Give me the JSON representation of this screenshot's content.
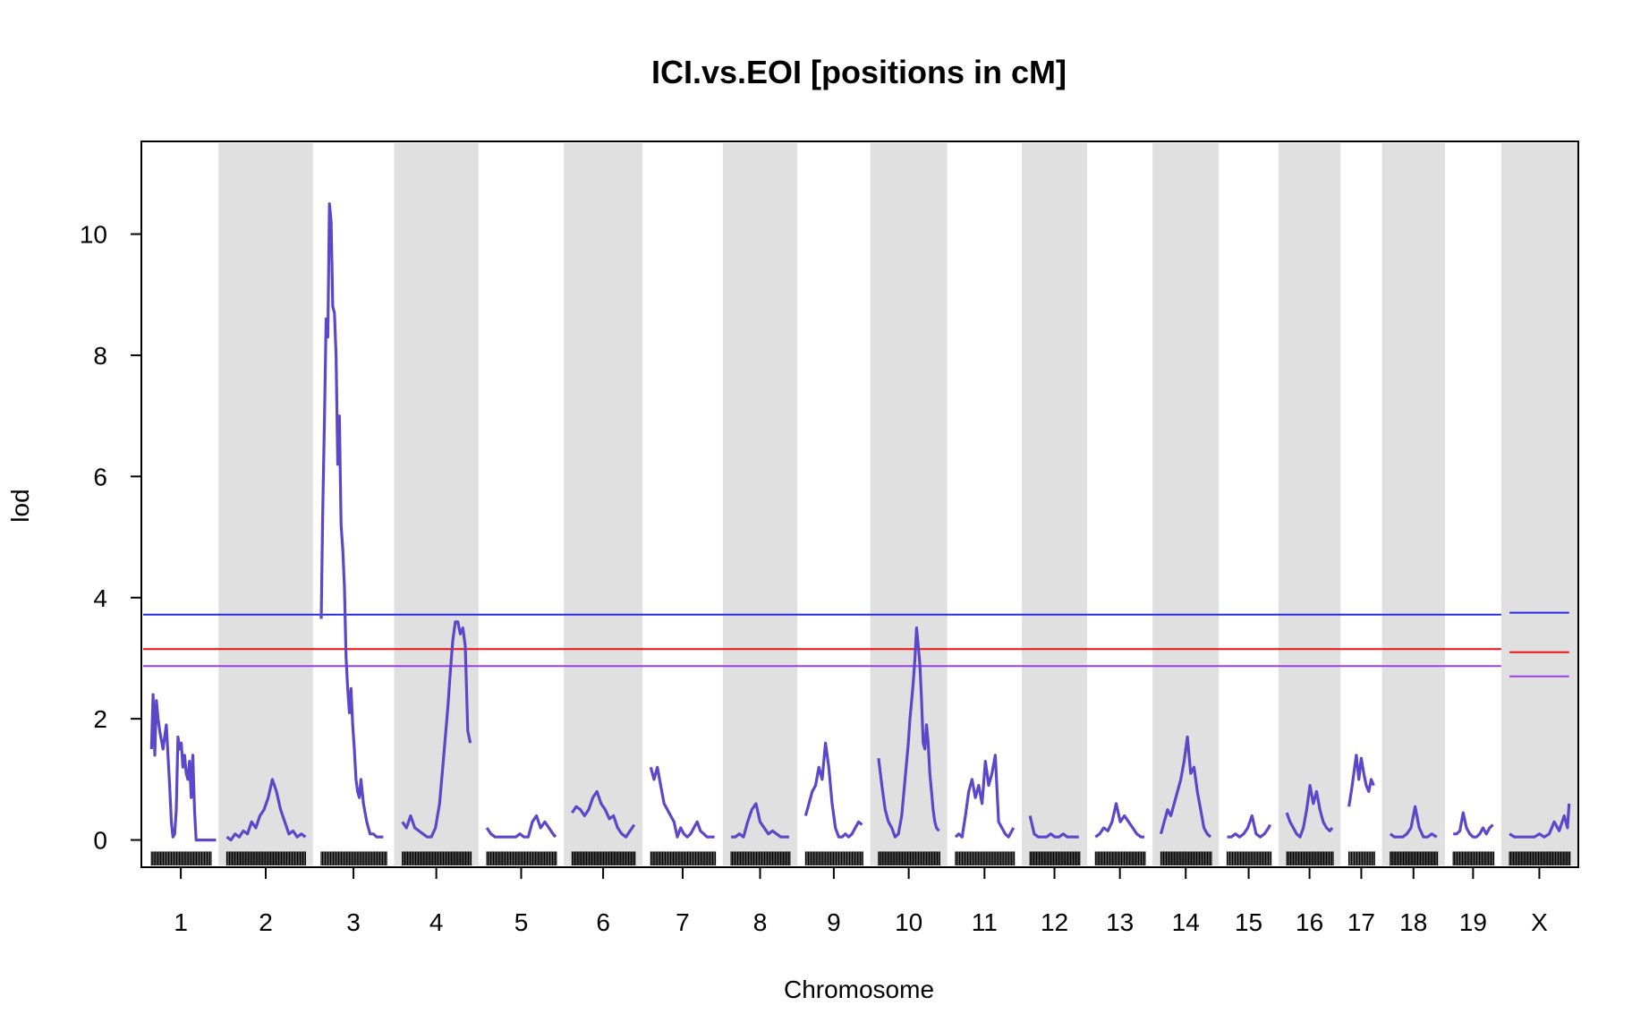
{
  "chart_data": {
    "type": "line",
    "title": "ICI.vs.EOI [positions in cM]",
    "xlabel": "Chromosome",
    "ylabel": "lod",
    "ylim": [
      -0.42,
      11.5
    ],
    "yticks": [
      0,
      2,
      4,
      6,
      8,
      10
    ],
    "grid": false,
    "legend": "none",
    "colors": {
      "series": "#5b47c9",
      "band": "#e0e0e0",
      "threshold_blue": "#2a2ae6",
      "threshold_red": "#ee1111",
      "threshold_purple": "#9a3ee6",
      "markers": "#000000"
    },
    "chromosomes": [
      {
        "label": "1",
        "shaded": false,
        "start": 0,
        "end": 91
      },
      {
        "label": "2",
        "shaded": true,
        "start": 91,
        "end": 205
      },
      {
        "label": "3",
        "shaded": false,
        "start": 205,
        "end": 303
      },
      {
        "label": "4",
        "shaded": true,
        "start": 303,
        "end": 405
      },
      {
        "label": "5",
        "shaded": false,
        "start": 405,
        "end": 508
      },
      {
        "label": "6",
        "shaded": true,
        "start": 508,
        "end": 603
      },
      {
        "label": "7",
        "shaded": false,
        "start": 603,
        "end": 700
      },
      {
        "label": "8",
        "shaded": true,
        "start": 700,
        "end": 790
      },
      {
        "label": "9",
        "shaded": false,
        "start": 790,
        "end": 878
      },
      {
        "label": "10",
        "shaded": true,
        "start": 878,
        "end": 971
      },
      {
        "label": "11",
        "shaded": false,
        "start": 971,
        "end": 1061
      },
      {
        "label": "12",
        "shaded": true,
        "start": 1061,
        "end": 1140
      },
      {
        "label": "13",
        "shaded": false,
        "start": 1140,
        "end": 1219
      },
      {
        "label": "14",
        "shaded": true,
        "start": 1219,
        "end": 1299
      },
      {
        "label": "15",
        "shaded": false,
        "start": 1299,
        "end": 1371
      },
      {
        "label": "16",
        "shaded": true,
        "start": 1371,
        "end": 1446
      },
      {
        "label": "17",
        "shaded": false,
        "start": 1446,
        "end": 1496
      },
      {
        "label": "18",
        "shaded": true,
        "start": 1496,
        "end": 1572
      },
      {
        "label": "19",
        "shaded": false,
        "start": 1572,
        "end": 1640
      },
      {
        "label": "X",
        "shaded": true,
        "start": 1640,
        "end": 1732
      }
    ],
    "thresholds": [
      {
        "color": "#2a2ae6",
        "autosome": 3.72,
        "x": 3.75
      },
      {
        "color": "#ee1111",
        "autosome": 3.15,
        "x": 3.1
      },
      {
        "color": "#9a3ee6",
        "autosome": 2.87,
        "x": 2.7
      }
    ],
    "series": [
      {
        "chr": "1",
        "x": [
          10,
          12,
          14,
          16,
          18,
          20,
          24,
          28,
          32,
          34,
          36,
          38,
          40,
          42,
          44,
          46,
          48,
          50,
          52,
          54,
          56,
          58,
          60,
          62,
          64,
          66,
          68,
          70,
          72,
          74,
          76,
          78,
          80,
          82,
          84,
          86,
          88
        ],
        "y": [
          1.5,
          2.4,
          1.4,
          2.3,
          2.0,
          1.8,
          1.5,
          1.9,
          0.9,
          0.3,
          0.05,
          0.1,
          0.5,
          1.7,
          1.5,
          1.6,
          1.2,
          1.4,
          1.1,
          1.0,
          1.3,
          0.7,
          1.4,
          0.5,
          0,
          0,
          0,
          0,
          0,
          0,
          0,
          0,
          0,
          0,
          0,
          0,
          0
        ]
      },
      {
        "chr": "2",
        "x": [
          101,
          106,
          111,
          116,
          121,
          126,
          131,
          136,
          141,
          146,
          151,
          156,
          161,
          166,
          171,
          176,
          181,
          186,
          191,
          196
        ],
        "y": [
          0.05,
          0.0,
          0.1,
          0.05,
          0.15,
          0.1,
          0.3,
          0.2,
          0.4,
          0.5,
          0.7,
          1.0,
          0.8,
          0.5,
          0.3,
          0.1,
          0.15,
          0.05,
          0.1,
          0.05
        ]
      },
      {
        "chr": "3",
        "x": [
          215,
          217,
          219,
          221,
          223,
          225,
          227,
          229,
          231,
          233,
          235,
          237,
          239,
          241,
          243,
          245,
          247,
          249,
          251,
          253,
          255,
          257,
          259,
          261,
          263,
          266,
          270,
          274,
          278,
          282,
          286,
          290
        ],
        "y": [
          3.65,
          5.5,
          7.0,
          8.6,
          8.3,
          10.5,
          10.2,
          8.8,
          8.7,
          8.0,
          6.2,
          7.0,
          5.2,
          4.8,
          4.2,
          3.0,
          2.5,
          2.1,
          2.5,
          1.9,
          1.5,
          1.0,
          0.8,
          0.7,
          1.0,
          0.6,
          0.3,
          0.1,
          0.1,
          0.05,
          0.05,
          0.05
        ]
      },
      {
        "chr": "4",
        "x": [
          313,
          318,
          323,
          328,
          333,
          338,
          343,
          348,
          353,
          358,
          363,
          368,
          371,
          374,
          377,
          380,
          383,
          386,
          389,
          392,
          395
        ],
        "y": [
          0.3,
          0.2,
          0.4,
          0.2,
          0.15,
          0.1,
          0.05,
          0.05,
          0.2,
          0.6,
          1.4,
          2.2,
          2.8,
          3.3,
          3.6,
          3.6,
          3.4,
          3.5,
          3.2,
          1.8,
          1.6
        ]
      },
      {
        "chr": "5",
        "x": [
          415,
          420,
          425,
          430,
          435,
          440,
          445,
          450,
          455,
          460,
          465,
          470,
          475,
          480,
          485,
          490,
          495,
          498
        ],
        "y": [
          0.2,
          0.1,
          0.05,
          0.05,
          0.05,
          0.05,
          0.05,
          0.05,
          0.1,
          0.05,
          0.05,
          0.3,
          0.4,
          0.2,
          0.3,
          0.2,
          0.1,
          0.05
        ]
      },
      {
        "chr": "6",
        "x": [
          518,
          523,
          528,
          533,
          538,
          543,
          548,
          553,
          558,
          563,
          568,
          573,
          578,
          583,
          588,
          593
        ],
        "y": [
          0.45,
          0.55,
          0.5,
          0.4,
          0.5,
          0.7,
          0.8,
          0.6,
          0.5,
          0.35,
          0.4,
          0.2,
          0.1,
          0.05,
          0.15,
          0.25
        ]
      },
      {
        "chr": "7",
        "x": [
          613,
          617,
          621,
          625,
          629,
          633,
          637,
          641,
          645,
          649,
          653,
          657,
          661,
          665,
          669,
          673,
          677,
          681,
          685,
          690
        ],
        "y": [
          1.2,
          1.0,
          1.2,
          0.9,
          0.6,
          0.5,
          0.4,
          0.3,
          0.05,
          0.2,
          0.1,
          0.05,
          0.1,
          0.2,
          0.3,
          0.15,
          0.1,
          0.05,
          0.05,
          0.05
        ]
      },
      {
        "chr": "8",
        "x": [
          710,
          715,
          720,
          725,
          730,
          735,
          740,
          745,
          750,
          755,
          760,
          765,
          770,
          775,
          780
        ],
        "y": [
          0.05,
          0.05,
          0.1,
          0.05,
          0.3,
          0.5,
          0.6,
          0.3,
          0.2,
          0.1,
          0.15,
          0.1,
          0.05,
          0.05,
          0.05
        ]
      },
      {
        "chr": "9",
        "x": [
          800,
          804,
          808,
          812,
          816,
          820,
          824,
          828,
          832,
          836,
          840,
          844,
          848,
          852,
          856,
          860,
          864,
          868
        ],
        "y": [
          0.4,
          0.6,
          0.8,
          0.9,
          1.2,
          1.0,
          1.6,
          1.2,
          0.6,
          0.2,
          0.05,
          0.05,
          0.1,
          0.05,
          0.1,
          0.2,
          0.3,
          0.25
        ]
      },
      {
        "chr": "10",
        "x": [
          888,
          892,
          896,
          900,
          904,
          908,
          912,
          916,
          920,
          924,
          926,
          928,
          930,
          932,
          934,
          936,
          938,
          940,
          942,
          944,
          946,
          948,
          950,
          952,
          954,
          956,
          958,
          961
        ],
        "y": [
          1.35,
          0.9,
          0.5,
          0.3,
          0.2,
          0.05,
          0.1,
          0.4,
          1.0,
          1.6,
          2.0,
          2.3,
          2.6,
          3.0,
          3.5,
          3.2,
          2.9,
          2.3,
          1.6,
          1.5,
          1.9,
          1.6,
          1.1,
          0.8,
          0.5,
          0.3,
          0.2,
          0.15
        ]
      },
      {
        "chr": "11",
        "x": [
          981,
          985,
          989,
          993,
          997,
          1001,
          1005,
          1009,
          1013,
          1017,
          1021,
          1025,
          1029,
          1033,
          1037,
          1041,
          1045,
          1051
        ],
        "y": [
          0.05,
          0.1,
          0.05,
          0.4,
          0.8,
          1.0,
          0.7,
          0.9,
          0.6,
          1.3,
          0.9,
          1.1,
          1.4,
          0.3,
          0.2,
          0.1,
          0.05,
          0.2
        ]
      },
      {
        "chr": "12",
        "x": [
          1071,
          1076,
          1081,
          1086,
          1091,
          1096,
          1101,
          1106,
          1111,
          1116,
          1121,
          1126,
          1130
        ],
        "y": [
          0.4,
          0.1,
          0.05,
          0.05,
          0.05,
          0.1,
          0.05,
          0.05,
          0.1,
          0.05,
          0.05,
          0.05,
          0.05
        ]
      },
      {
        "chr": "13",
        "x": [
          1150,
          1155,
          1160,
          1165,
          1170,
          1175,
          1180,
          1185,
          1190,
          1195,
          1200,
          1205,
          1209
        ],
        "y": [
          0.05,
          0.1,
          0.2,
          0.15,
          0.3,
          0.6,
          0.3,
          0.4,
          0.3,
          0.2,
          0.1,
          0.05,
          0.05
        ]
      },
      {
        "chr": "14",
        "x": [
          1229,
          1233,
          1237,
          1241,
          1245,
          1249,
          1253,
          1257,
          1261,
          1265,
          1269,
          1273,
          1277,
          1281,
          1285,
          1289
        ],
        "y": [
          0.1,
          0.3,
          0.5,
          0.4,
          0.6,
          0.8,
          1.0,
          1.3,
          1.7,
          1.1,
          1.2,
          0.8,
          0.5,
          0.2,
          0.1,
          0.05
        ]
      },
      {
        "chr": "15",
        "x": [
          1309,
          1314,
          1319,
          1324,
          1329,
          1334,
          1339,
          1344,
          1349,
          1354,
          1359,
          1361
        ],
        "y": [
          0.05,
          0.05,
          0.1,
          0.05,
          0.1,
          0.2,
          0.4,
          0.1,
          0.05,
          0.1,
          0.2,
          0.25
        ]
      },
      {
        "chr": "16",
        "x": [
          1381,
          1385,
          1389,
          1393,
          1397,
          1401,
          1405,
          1409,
          1413,
          1417,
          1421,
          1425,
          1429,
          1433,
          1436
        ],
        "y": [
          0.45,
          0.3,
          0.2,
          0.1,
          0.05,
          0.2,
          0.5,
          0.9,
          0.6,
          0.8,
          0.5,
          0.3,
          0.2,
          0.15,
          0.2
        ]
      },
      {
        "chr": "17",
        "x": [
          1456,
          1459,
          1462,
          1465,
          1468,
          1471,
          1474,
          1477,
          1480,
          1483,
          1486
        ],
        "y": [
          0.55,
          0.8,
          1.1,
          1.4,
          1.0,
          1.35,
          1.1,
          0.9,
          0.8,
          1.0,
          0.9
        ]
      },
      {
        "chr": "18",
        "x": [
          1506,
          1511,
          1516,
          1521,
          1526,
          1531,
          1536,
          1541,
          1546,
          1551,
          1556,
          1562
        ],
        "y": [
          0.1,
          0.05,
          0.05,
          0.05,
          0.1,
          0.2,
          0.55,
          0.2,
          0.05,
          0.05,
          0.1,
          0.05
        ]
      },
      {
        "chr": "19",
        "x": [
          1582,
          1586,
          1590,
          1594,
          1598,
          1602,
          1606,
          1610,
          1614,
          1618,
          1622,
          1626,
          1630
        ],
        "y": [
          0.1,
          0.1,
          0.15,
          0.45,
          0.2,
          0.1,
          0.05,
          0.05,
          0.1,
          0.2,
          0.1,
          0.2,
          0.25
        ]
      },
      {
        "chr": "X",
        "x": [
          1650,
          1656,
          1662,
          1668,
          1674,
          1680,
          1686,
          1692,
          1698,
          1704,
          1710,
          1716,
          1720,
          1722
        ],
        "y": [
          0.1,
          0.05,
          0.05,
          0.05,
          0.05,
          0.05,
          0.1,
          0.05,
          0.1,
          0.3,
          0.15,
          0.4,
          0.2,
          0.6
        ]
      }
    ]
  }
}
